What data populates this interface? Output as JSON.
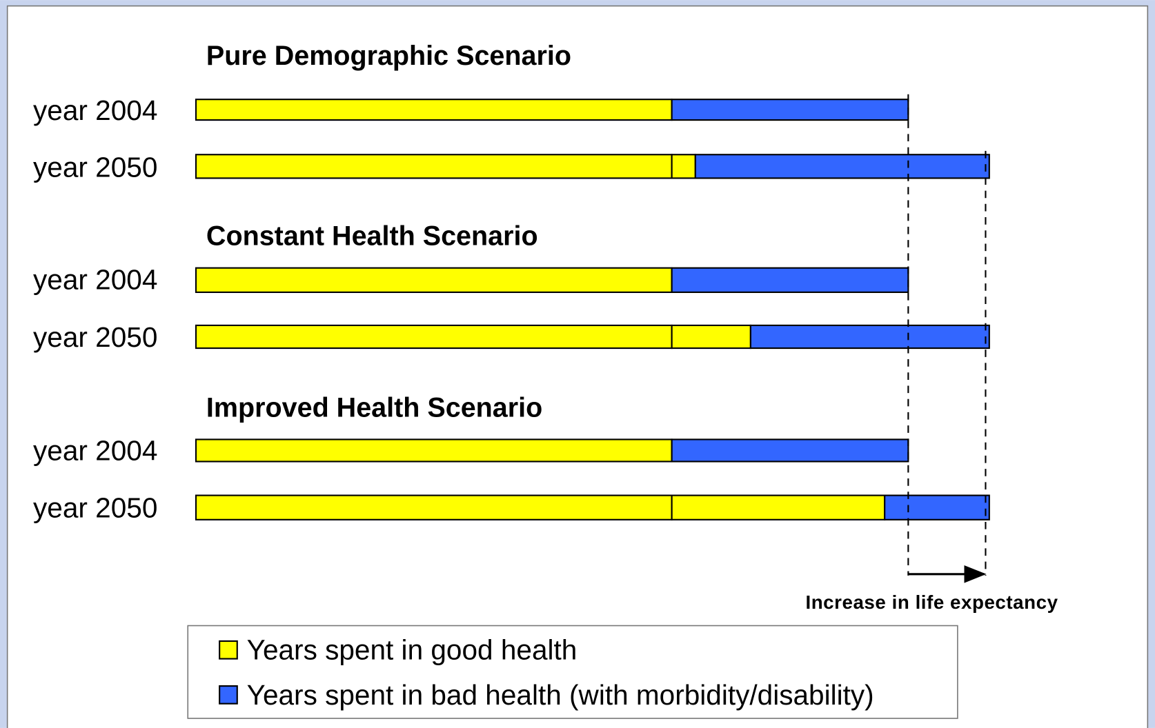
{
  "scenarios": [
    {
      "title": "Pure Demographic Scenario",
      "rows": [
        {
          "label": "year 2004"
        },
        {
          "label": "year 2050"
        }
      ]
    },
    {
      "title": "Constant Health Scenario",
      "rows": [
        {
          "label": "year 2004"
        },
        {
          "label": "year 2050"
        }
      ]
    },
    {
      "title": "Improved Health Scenario",
      "rows": [
        {
          "label": "year 2004"
        },
        {
          "label": "year 2050"
        }
      ]
    }
  ],
  "annotation": "Increase in life expectancy",
  "legend": [
    {
      "label": "Years spent in good health"
    },
    {
      "label": "Years spent in bad health (with morbidity/disability)"
    }
  ]
}
